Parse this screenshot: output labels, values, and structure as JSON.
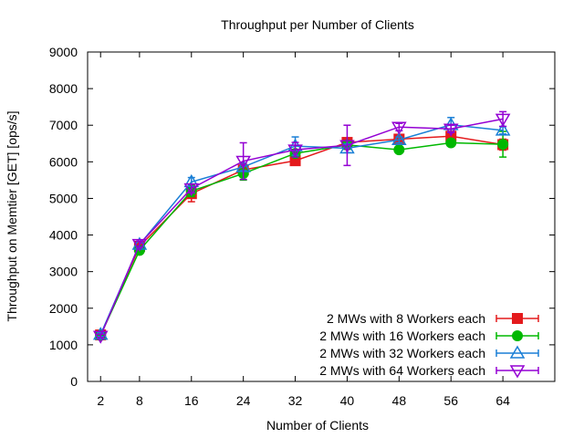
{
  "chart_data": {
    "type": "line",
    "title": "Throughput per Number of Clients",
    "xlabel": "Number of Clients",
    "ylabel": "Throughput on Memtier [GET] [ops/s]",
    "x": [
      2,
      8,
      16,
      24,
      32,
      40,
      48,
      56,
      64
    ],
    "x_tick_labels": [
      "2",
      "8",
      "16",
      "24",
      "32",
      "40",
      "48",
      "56",
      "64"
    ],
    "xlim": [
      0,
      72
    ],
    "ylim": [
      0,
      9000
    ],
    "y_ticks": [
      0,
      1000,
      2000,
      3000,
      4000,
      5000,
      6000,
      7000,
      8000,
      9000
    ],
    "grid": false,
    "legend_position": "bottom-right",
    "series": [
      {
        "name": "2 MWs with 8 Workers each",
        "color": "#e41a1c",
        "marker": "square",
        "values": [
          1270,
          3690,
          5130,
          5780,
          6030,
          6530,
          6620,
          6700,
          6470
        ],
        "errors": [
          50,
          80,
          220,
          150,
          80,
          120,
          100,
          100,
          150
        ]
      },
      {
        "name": "2 MWs with 16 Workers each",
        "color": "#00b800",
        "marker": "circle",
        "values": [
          1260,
          3580,
          5200,
          5680,
          6230,
          6460,
          6330,
          6520,
          6480
        ],
        "errors": [
          50,
          80,
          150,
          180,
          100,
          120,
          80,
          80,
          350
        ]
      },
      {
        "name": "2 MWs with 32 Workers each",
        "color": "#1a7fd6",
        "marker": "triangle-up",
        "values": [
          1280,
          3740,
          5450,
          5860,
          6430,
          6370,
          6600,
          7010,
          6860
        ],
        "errors": [
          50,
          80,
          120,
          100,
          250,
          120,
          80,
          200,
          100
        ]
      },
      {
        "name": "2 MWs with 64 Workers each",
        "color": "#9400d3",
        "marker": "triangle-down",
        "values": [
          1240,
          3750,
          5270,
          6020,
          6330,
          6450,
          6950,
          6900,
          7170
        ],
        "errors": [
          50,
          80,
          120,
          500,
          200,
          550,
          100,
          100,
          200
        ]
      }
    ]
  }
}
